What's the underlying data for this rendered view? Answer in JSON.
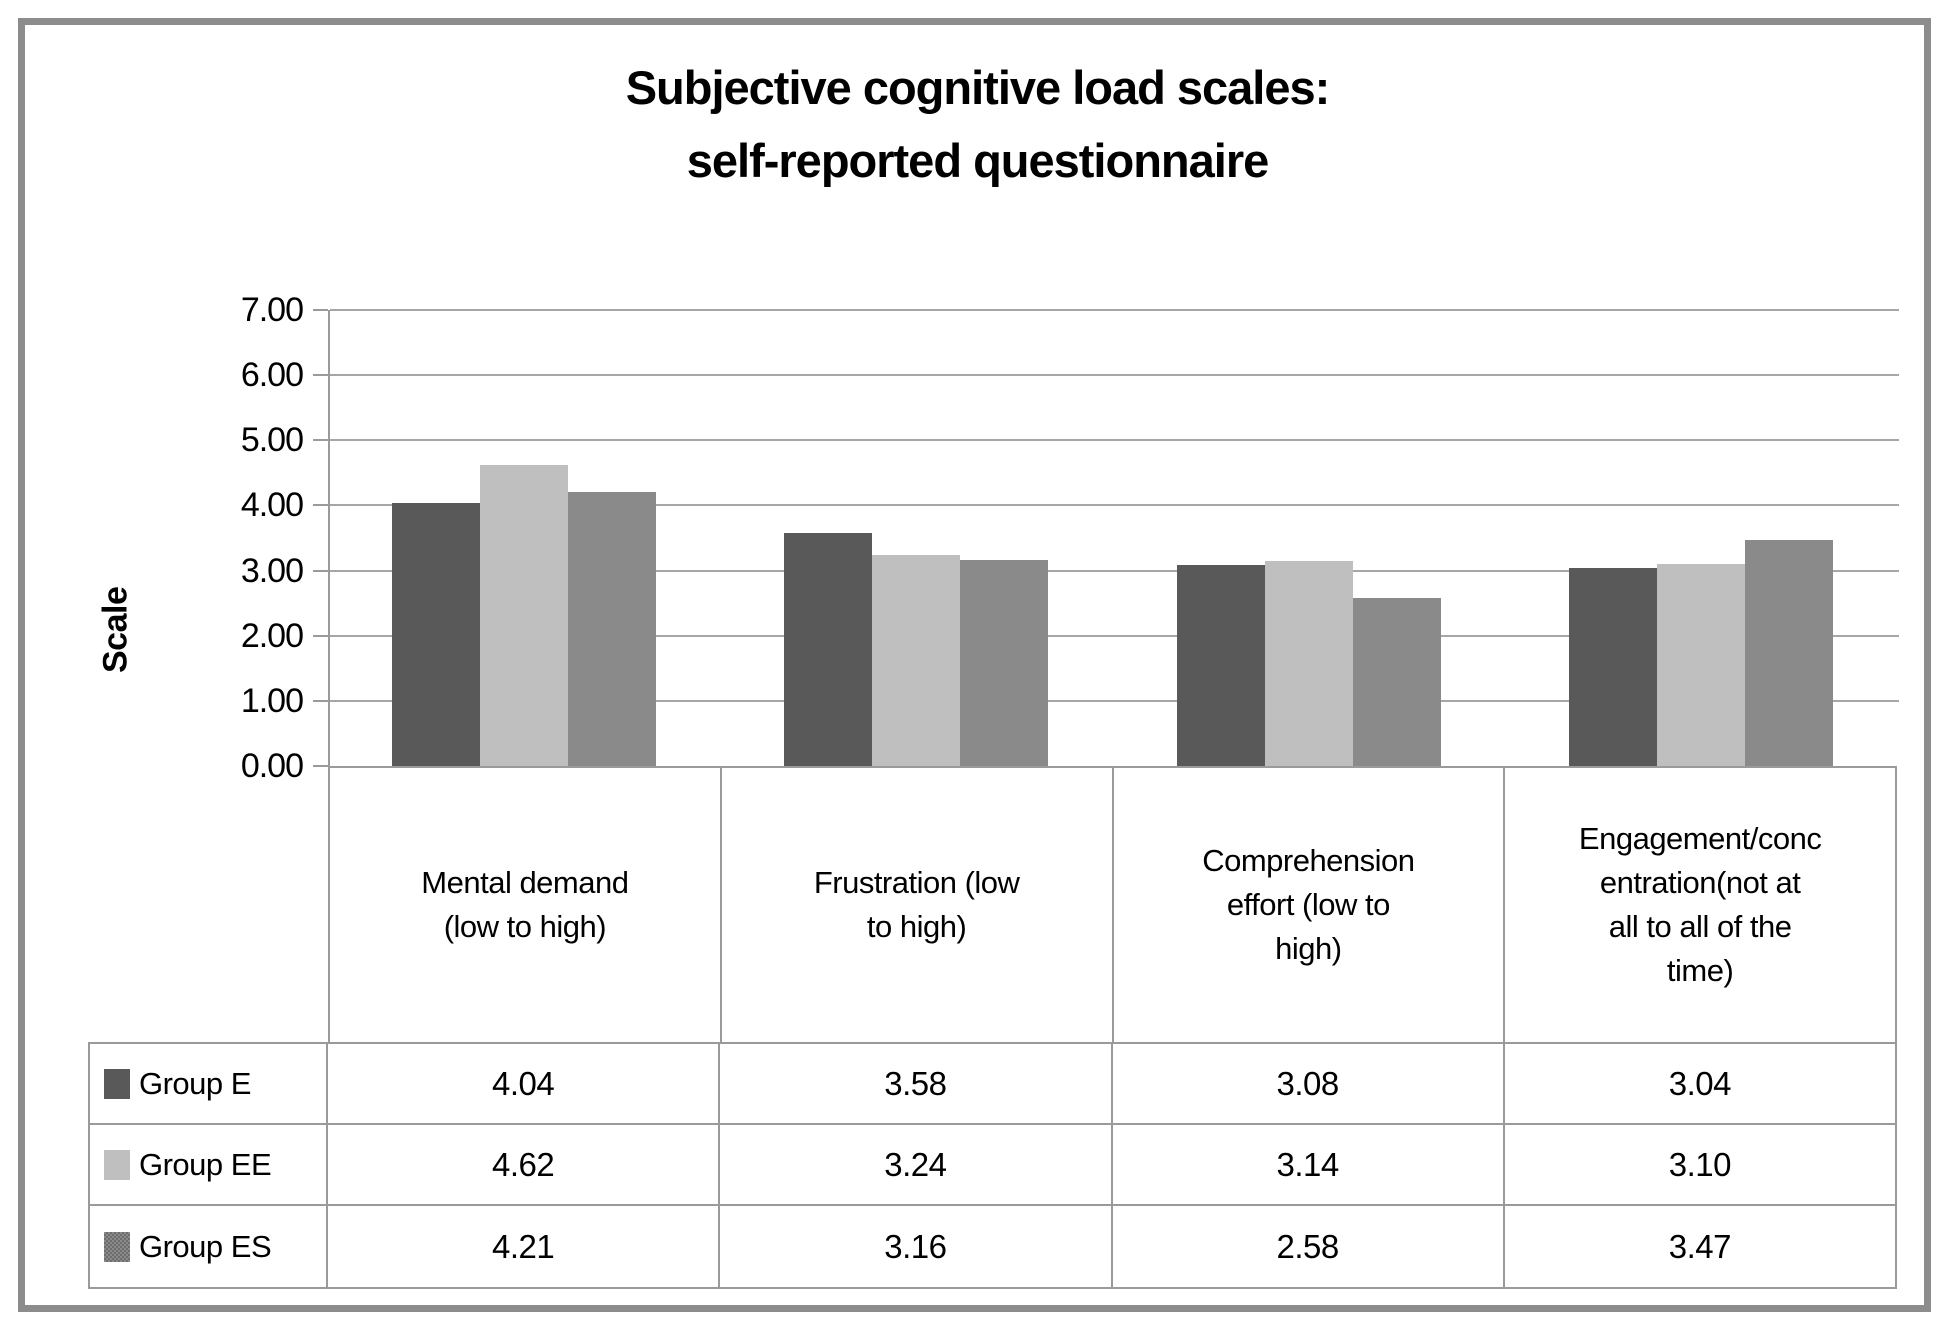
{
  "frame": {
    "border_color": "#8c8c8c"
  },
  "chart_data": {
    "type": "bar",
    "title_lines": [
      "Subjective cognitive load scales:",
      "self-reported questionnaire"
    ],
    "title": "Subjective cognitive load scales: self-reported questionnaire",
    "ylabel": "Scale",
    "xlabel": "",
    "ylim": [
      0,
      7
    ],
    "ytick_step": 1.0,
    "ytick_labels": [
      "7.00",
      "6.00",
      "5.00",
      "4.00",
      "3.00",
      "2.00",
      "1.00",
      "0.00"
    ],
    "grid": true,
    "gridline_color": "#a6a6a6",
    "legend_position": "table-left",
    "categories": [
      "Mental demand (low to high)",
      "Frustration (low to high)",
      "Comprehension effort (low to high)",
      "Engagement/concentration(not at all to all of the time)"
    ],
    "category_label_lines": [
      [
        "Mental demand",
        "(low to high)"
      ],
      [
        "Frustration (low",
        "to high)"
      ],
      [
        "Comprehension",
        "effort (low to",
        "high)"
      ],
      [
        "Engagement/conc",
        "entration(not at",
        "all to all of the",
        "time)"
      ]
    ],
    "series": [
      {
        "name": "Group E",
        "values": [
          4.04,
          3.58,
          3.08,
          3.04
        ],
        "display_values": [
          "4.04",
          "3.58",
          "3.08",
          "3.04"
        ],
        "color": "#595959",
        "pattern": "solid"
      },
      {
        "name": "Group EE",
        "values": [
          4.62,
          3.24,
          3.14,
          3.1
        ],
        "display_values": [
          "4.62",
          "3.24",
          "3.14",
          "3.10"
        ],
        "color": "#bfbfbf",
        "pattern": "solid"
      },
      {
        "name": "Group ES",
        "values": [
          4.21,
          3.16,
          2.58,
          3.47
        ],
        "display_values": [
          "4.21",
          "3.16",
          "2.58",
          "3.47"
        ],
        "color": "#8a8a8a",
        "pattern": "checker"
      }
    ]
  }
}
